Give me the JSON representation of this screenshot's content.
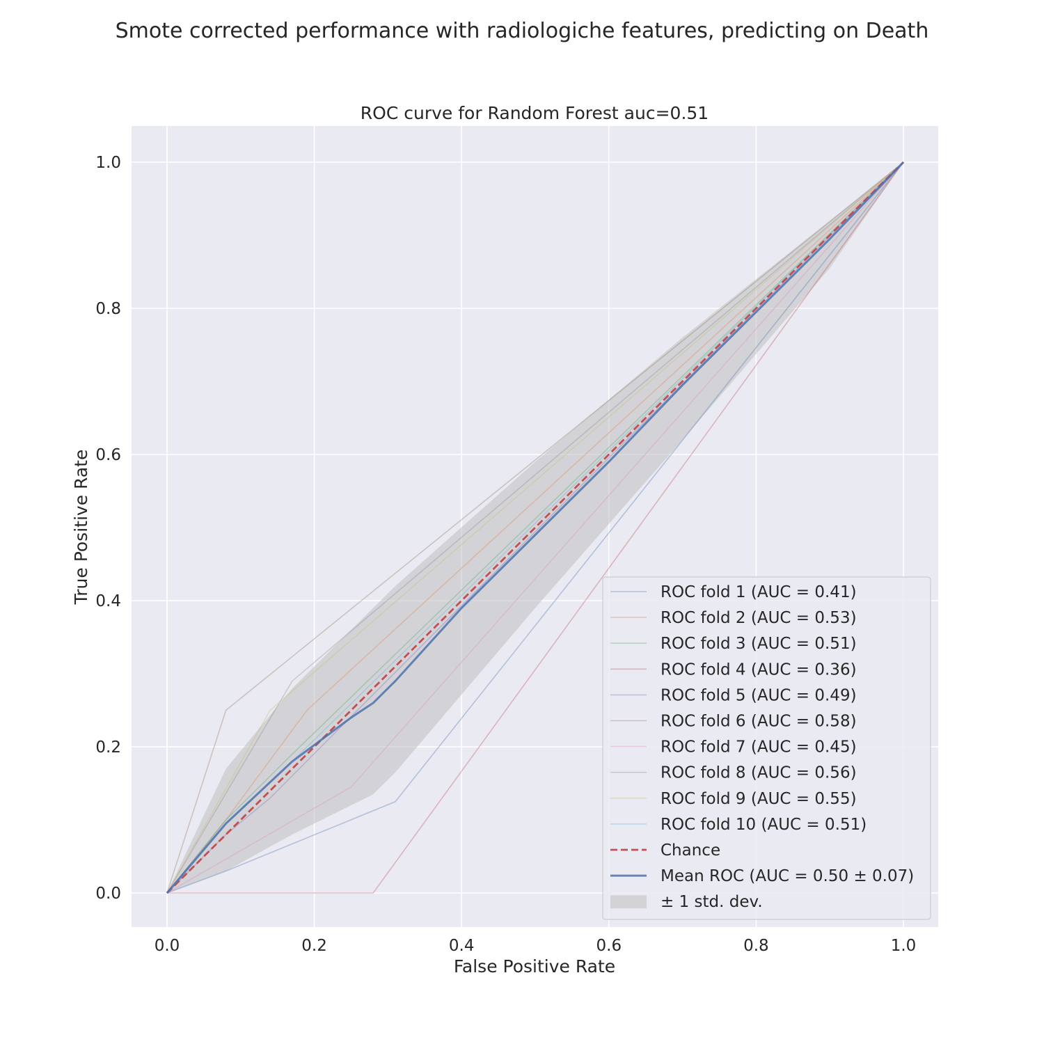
{
  "figure": {
    "suptitle": "Smote corrected performance with radiologiche features, predicting on Death"
  },
  "chart_data": {
    "type": "line",
    "title": "ROC curve for Random Forest auc=0.51",
    "xlabel": "False Positive Rate",
    "ylabel": "True Positive Rate",
    "xlim": [
      -0.05,
      1.05
    ],
    "ylim": [
      -0.05,
      1.05
    ],
    "xticks": [
      "0.0",
      "0.2",
      "0.4",
      "0.6",
      "0.8",
      "1.0"
    ],
    "yticks": [
      "0.0",
      "0.2",
      "0.4",
      "0.6",
      "0.8",
      "1.0"
    ],
    "grid": true,
    "legend_position": "lower-right",
    "series": [
      {
        "name": "ROC fold 1 (AUC = 0.41)",
        "color": "#4c72b0",
        "x": [
          0,
          0.08,
          0.31,
          1.0
        ],
        "y": [
          0,
          0.03,
          0.125,
          1.0
        ]
      },
      {
        "name": "ROC fold 2 (AUC = 0.53)",
        "color": "#dd8452",
        "x": [
          0,
          0.08,
          0.19,
          1.0
        ],
        "y": [
          0,
          0.1,
          0.25,
          1.0
        ]
      },
      {
        "name": "ROC fold 3 (AUC = 0.51)",
        "color": "#55a868",
        "x": [
          0,
          0.08,
          0.17,
          1.0
        ],
        "y": [
          0,
          0.1,
          0.19,
          1.0
        ]
      },
      {
        "name": "ROC fold 4 (AUC = 0.36)",
        "color": "#c44e52",
        "x": [
          0,
          0.28,
          1.0
        ],
        "y": [
          0,
          0,
          1.0
        ]
      },
      {
        "name": "ROC fold 5 (AUC = 0.49)",
        "color": "#8172b3",
        "x": [
          0,
          0.08,
          0.14,
          1.0
        ],
        "y": [
          0,
          0.08,
          0.13,
          1.0
        ]
      },
      {
        "name": "ROC fold 6 (AUC = 0.58)",
        "color": "#937860",
        "x": [
          0,
          0.08,
          1.0
        ],
        "y": [
          0,
          0.25,
          1.0
        ]
      },
      {
        "name": "ROC fold 7 (AUC = 0.45)",
        "color": "#da8bc3",
        "x": [
          0,
          0.25,
          1.0
        ],
        "y": [
          0,
          0.145,
          1.0
        ]
      },
      {
        "name": "ROC fold 8 (AUC = 0.56)",
        "color": "#8c8c8c",
        "x": [
          0,
          0.17,
          1.0
        ],
        "y": [
          0,
          0.29,
          1.0
        ]
      },
      {
        "name": "ROC fold 9 (AUC = 0.55)",
        "color": "#ccb974",
        "x": [
          0,
          0.14,
          1.0
        ],
        "y": [
          0,
          0.25,
          1.0
        ]
      },
      {
        "name": "ROC fold 10 (AUC = 0.51)",
        "color": "#64b5cd",
        "x": [
          0,
          0.08,
          0.17,
          1.0
        ],
        "y": [
          0,
          0.095,
          0.18,
          1.0
        ]
      }
    ],
    "chance": {
      "name": "Chance",
      "color": "#c44e52",
      "x": [
        0,
        1
      ],
      "y": [
        0,
        1
      ]
    },
    "mean": {
      "name": "Mean ROC (AUC = 0.50 ± 0.07)",
      "color": "#4c72b0",
      "x": [
        0,
        0.08,
        0.17,
        0.25,
        0.28,
        0.31,
        0.4,
        0.5,
        0.6,
        0.7,
        0.8,
        0.9,
        1.0
      ],
      "y": [
        0,
        0.095,
        0.18,
        0.24,
        0.26,
        0.29,
        0.39,
        0.49,
        0.59,
        0.695,
        0.795,
        0.895,
        1.0
      ]
    },
    "std_band": {
      "name": "± 1 std. dev.",
      "color": "#bbbbbb",
      "x": [
        0,
        0.08,
        0.17,
        0.28,
        0.31,
        0.5,
        0.7,
        0.9,
        1.0
      ],
      "upper": [
        0,
        0.17,
        0.28,
        0.39,
        0.42,
        0.59,
        0.76,
        0.92,
        1.0
      ],
      "lower": [
        0,
        0.03,
        0.08,
        0.135,
        0.165,
        0.39,
        0.62,
        0.855,
        1.0
      ]
    }
  }
}
